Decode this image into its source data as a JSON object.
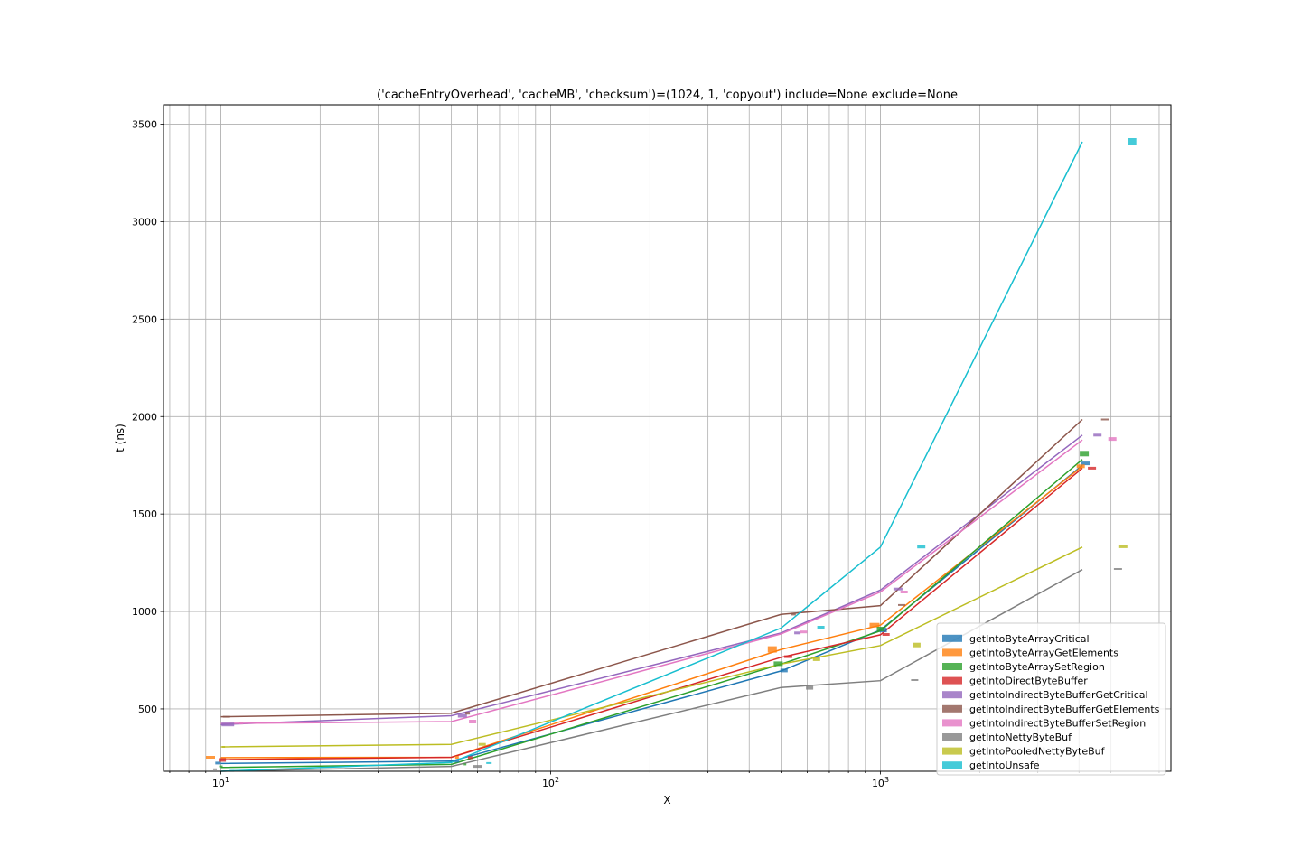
{
  "chart_data": {
    "type": "line",
    "title": "('cacheEntryOverhead', 'cacheMB', 'checksum')=(1024, 1, 'copyout') include=None exclude=None",
    "xlabel": "X",
    "ylabel": "t (ns)",
    "xscale": "log",
    "xlim": [
      6.7,
      7600
    ],
    "ylim": [
      180,
      3600
    ],
    "grid": true,
    "legend_position": "lower-right",
    "x_tick_labels": [
      {
        "value": 10,
        "base": "10",
        "exp": "1"
      },
      {
        "value": 100,
        "base": "10",
        "exp": "2"
      },
      {
        "value": 1000,
        "base": "10",
        "exp": "3"
      }
    ],
    "y_ticks": [
      500,
      1000,
      1500,
      2000,
      2500,
      3000,
      3500
    ],
    "x": [
      10,
      50,
      500,
      1000,
      4096
    ],
    "series": [
      {
        "name": "getIntoByteArrayCritical",
        "color": "#1f77b4",
        "values": [
          220,
          232,
          695,
          905,
          1750
        ],
        "markers": [
          {
            "x": 9.8,
            "y": 222,
            "w": 6,
            "h": 3
          },
          {
            "x": 52,
            "y": 232,
            "w": 5,
            "h": 3
          },
          {
            "x": 510,
            "y": 697,
            "w": 8,
            "h": 4
          },
          {
            "x": 1020,
            "y": 905,
            "w": 8,
            "h": 5
          },
          {
            "x": 4200,
            "y": 1760,
            "w": 10,
            "h": 4
          }
        ]
      },
      {
        "name": "getIntoByteArrayGetElements",
        "color": "#ff7f0e",
        "values": [
          250,
          252,
          805,
          930,
          1745
        ],
        "markers": [
          {
            "x": 9.3,
            "y": 252,
            "w": 10,
            "h": 3
          },
          {
            "x": 52,
            "y": 252,
            "w": 4,
            "h": 3
          },
          {
            "x": 470,
            "y": 805,
            "w": 10,
            "h": 7
          },
          {
            "x": 960,
            "y": 930,
            "w": 11,
            "h": 5
          },
          {
            "x": 4050,
            "y": 1745,
            "w": 9,
            "h": 4
          }
        ]
      },
      {
        "name": "getIntoByteArraySetRegion",
        "color": "#2ca02c",
        "values": [
          200,
          215,
          730,
          900,
          1780
        ],
        "markers": [
          {
            "x": 10,
            "y": 205,
            "w": 4,
            "h": 2
          },
          {
            "x": 55,
            "y": 215,
            "w": 3,
            "h": 2
          },
          {
            "x": 490,
            "y": 732,
            "w": 10,
            "h": 5
          },
          {
            "x": 1000,
            "y": 910,
            "w": 8,
            "h": 5
          },
          {
            "x": 4150,
            "y": 1810,
            "w": 10,
            "h": 6
          }
        ]
      },
      {
        "name": "getIntoDirectByteBuffer",
        "color": "#d62728",
        "values": [
          240,
          252,
          765,
          880,
          1735
        ],
        "markers": [
          {
            "x": 10.1,
            "y": 238,
            "w": 8,
            "h": 4
          },
          {
            "x": 57,
            "y": 250,
            "w": 5,
            "h": 3
          },
          {
            "x": 525,
            "y": 768,
            "w": 9,
            "h": 3
          },
          {
            "x": 1040,
            "y": 882,
            "w": 8,
            "h": 3
          },
          {
            "x": 4380,
            "y": 1735,
            "w": 9,
            "h": 3
          }
        ]
      },
      {
        "name": "getIntoIndirectByteBufferGetCritical",
        "color": "#9467bd",
        "values": [
          420,
          465,
          890,
          1110,
          1905
        ],
        "markers": [
          {
            "x": 10.5,
            "y": 420,
            "w": 14,
            "h": 4
          },
          {
            "x": 54,
            "y": 465,
            "w": 10,
            "h": 4
          },
          {
            "x": 560,
            "y": 890,
            "w": 7,
            "h": 3
          },
          {
            "x": 1130,
            "y": 1115,
            "w": 10,
            "h": 3
          },
          {
            "x": 4550,
            "y": 1905,
            "w": 9,
            "h": 3
          }
        ]
      },
      {
        "name": "getIntoIndirectByteBufferGetElements",
        "color": "#8c564b",
        "values": [
          460,
          478,
          985,
          1030,
          1985
        ],
        "markers": [
          {
            "x": 10.4,
            "y": 460,
            "w": 8,
            "h": 2
          },
          {
            "x": 56,
            "y": 478,
            "w": 5,
            "h": 3
          },
          {
            "x": 545,
            "y": 987,
            "w": 5,
            "h": 3
          },
          {
            "x": 1160,
            "y": 1033,
            "w": 8,
            "h": 2
          },
          {
            "x": 4800,
            "y": 1985,
            "w": 9,
            "h": 2
          }
        ]
      },
      {
        "name": "getIntoIndirectByteBufferSetRegion",
        "color": "#e377c2",
        "values": [
          425,
          435,
          885,
          1100,
          1880
        ],
        "markers": [
          {
            "x": 11.5,
            "y": 425,
            "w": 5,
            "h": 2
          },
          {
            "x": 58,
            "y": 435,
            "w": 8,
            "h": 4
          },
          {
            "x": 585,
            "y": 895,
            "w": 8,
            "h": 3
          },
          {
            "x": 1180,
            "y": 1100,
            "w": 8,
            "h": 3
          },
          {
            "x": 5050,
            "y": 1885,
            "w": 9,
            "h": 4
          }
        ]
      },
      {
        "name": "getIntoNettyByteBuf",
        "color": "#7f7f7f",
        "values": [
          180,
          205,
          610,
          645,
          1215
        ],
        "markers": [
          {
            "x": 9.6,
            "y": 190,
            "w": 4,
            "h": 2
          },
          {
            "x": 60,
            "y": 205,
            "w": 9,
            "h": 3
          },
          {
            "x": 610,
            "y": 608,
            "w": 8,
            "h": 4
          },
          {
            "x": 1270,
            "y": 648,
            "w": 8,
            "h": 2
          },
          {
            "x": 5250,
            "y": 1218,
            "w": 9,
            "h": 2
          }
        ]
      },
      {
        "name": "getIntoPooledNettyByteBuf",
        "color": "#bcbd22",
        "values": [
          305,
          318,
          730,
          825,
          1330
        ],
        "markers": [
          {
            "x": 10.2,
            "y": 305,
            "w": 3,
            "h": 2
          },
          {
            "x": 62,
            "y": 318,
            "w": 8,
            "h": 3
          },
          {
            "x": 640,
            "y": 755,
            "w": 8,
            "h": 4
          },
          {
            "x": 1290,
            "y": 828,
            "w": 8,
            "h": 5
          },
          {
            "x": 5450,
            "y": 1332,
            "w": 9,
            "h": 3
          }
        ]
      },
      {
        "name": "getIntoUnsafe",
        "color": "#17becf",
        "values": [
          180,
          225,
          915,
          1330,
          3410
        ],
        "markers": [
          {
            "x": 10.8,
            "y": 182,
            "w": 5,
            "h": 2
          },
          {
            "x": 65,
            "y": 222,
            "w": 6,
            "h": 2
          },
          {
            "x": 660,
            "y": 917,
            "w": 8,
            "h": 4
          },
          {
            "x": 1330,
            "y": 1333,
            "w": 9,
            "h": 4
          },
          {
            "x": 5800,
            "y": 3410,
            "w": 9,
            "h": 8
          }
        ]
      }
    ]
  }
}
